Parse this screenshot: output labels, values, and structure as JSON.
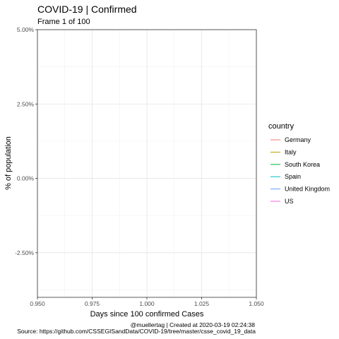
{
  "chart_data": {
    "type": "line",
    "title": "COVID-19 | Confirmed",
    "subtitle": "Frame 1 of 100",
    "xlabel": "Days since 100 confirmed Cases",
    "ylabel": "% of population",
    "xlim": [
      0.95,
      1.05
    ],
    "ylim": [
      -0.04,
      0.05
    ],
    "x_ticks": [
      0.95,
      0.975,
      1.0,
      1.025,
      1.05
    ],
    "x_tick_labels": [
      "0.950",
      "0.975",
      "1.000",
      "1.025",
      "1.050"
    ],
    "y_ticks": [
      -0.025,
      0.0,
      0.025,
      0.05
    ],
    "y_tick_labels": [
      "-2.50%",
      "0.00%",
      "2.50%",
      "5.00%"
    ],
    "y_minor_ticks": [
      -0.0375,
      -0.0125,
      0.0125,
      0.0375
    ],
    "x_minor_ticks": [
      0.9625,
      0.9875,
      1.0125,
      1.0375
    ],
    "grid": true,
    "legend": {
      "title": "country",
      "placement": "right",
      "entries": [
        {
          "name": "Germany",
          "color": "#F8766D"
        },
        {
          "name": "Italy",
          "color": "#B79F00"
        },
        {
          "name": "South Korea",
          "color": "#00BA38"
        },
        {
          "name": "Spain",
          "color": "#00BFC4"
        },
        {
          "name": "United Kingdom",
          "color": "#619CFF"
        },
        {
          "name": "US",
          "color": "#F564E3"
        }
      ]
    },
    "series": [
      {
        "name": "Germany",
        "x": [],
        "y": []
      },
      {
        "name": "Italy",
        "x": [],
        "y": []
      },
      {
        "name": "South Korea",
        "x": [],
        "y": []
      },
      {
        "name": "Spain",
        "x": [],
        "y": []
      },
      {
        "name": "United Kingdom",
        "x": [],
        "y": []
      },
      {
        "name": "US",
        "x": [],
        "y": []
      }
    ],
    "caption_line1": "@muellertag | Created at  2020-03-19 02:24:38",
    "caption_line2": "Source: https://github.com/CSSEGISandData/COVID-19/tree/master/csse_covid_19_data"
  }
}
